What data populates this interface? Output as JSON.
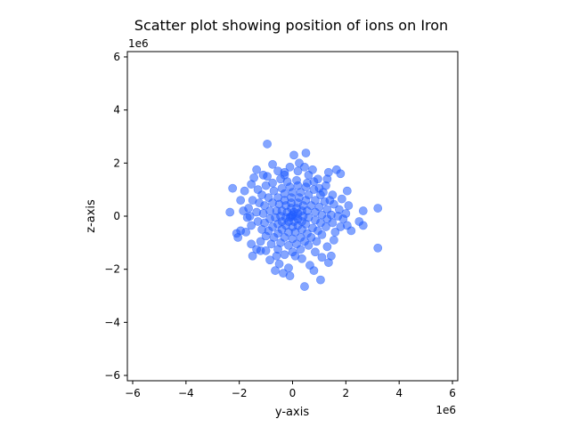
{
  "chart_data": {
    "type": "scatter",
    "title": "Scatter plot showing position of ions on Iron",
    "xlabel": "y-axis",
    "ylabel": "z-axis",
    "x_offset_label": "1e6",
    "y_offset_label": "1e6",
    "xlim": [
      -6.2,
      6.2
    ],
    "ylim": [
      -6.2,
      6.2
    ],
    "xticks": [
      -6,
      -4,
      -2,
      0,
      2,
      4,
      6
    ],
    "yticks": [
      -6,
      -4,
      -2,
      0,
      2,
      4,
      6
    ],
    "xtick_labels": [
      "−6",
      "−4",
      "−2",
      "0",
      "2",
      "4",
      "6"
    ],
    "ytick_labels": [
      "−6",
      "−4",
      "−2",
      "0",
      "2",
      "4",
      "6"
    ],
    "grid": false,
    "marker_color": "#1f5bff",
    "marker_alpha": 0.55,
    "series": [
      {
        "points": [
          [
            -0.95,
            2.72
          ],
          [
            0.05,
            2.3
          ],
          [
            0.5,
            2.38
          ],
          [
            0.25,
            2.0
          ],
          [
            0.45,
            1.85
          ],
          [
            1.65,
            1.75
          ],
          [
            1.8,
            1.6
          ],
          [
            1.35,
            1.65
          ],
          [
            1.3,
            1.4
          ],
          [
            -0.75,
            1.95
          ],
          [
            -0.55,
            1.7
          ],
          [
            -0.3,
            1.65
          ],
          [
            -1.35,
            1.75
          ],
          [
            -1.1,
            1.55
          ],
          [
            -1.45,
            1.45
          ],
          [
            -1.55,
            1.2
          ],
          [
            -1.3,
            1.0
          ],
          [
            -1.8,
            0.95
          ],
          [
            -2.25,
            1.05
          ],
          [
            -1.95,
            0.6
          ],
          [
            -2.35,
            0.15
          ],
          [
            -1.65,
            0.3
          ],
          [
            -1.7,
            -0.05
          ],
          [
            -2.1,
            -0.65
          ],
          [
            -1.95,
            -0.55
          ],
          [
            -2.05,
            -0.8
          ],
          [
            -1.75,
            -0.6
          ],
          [
            -1.55,
            -1.05
          ],
          [
            -1.5,
            -1.5
          ],
          [
            -1.2,
            -0.95
          ],
          [
            -1.35,
            -1.25
          ],
          [
            -0.85,
            -1.65
          ],
          [
            -0.65,
            -2.05
          ],
          [
            -0.35,
            -2.15
          ],
          [
            -0.1,
            -2.25
          ],
          [
            -0.15,
            -1.95
          ],
          [
            0.1,
            -1.5
          ],
          [
            0.45,
            -2.65
          ],
          [
            0.65,
            -1.85
          ],
          [
            0.8,
            -2.05
          ],
          [
            1.05,
            -2.4
          ],
          [
            1.1,
            -1.55
          ],
          [
            1.35,
            -1.75
          ],
          [
            1.45,
            -1.5
          ],
          [
            1.3,
            -1.15
          ],
          [
            1.55,
            -0.9
          ],
          [
            1.8,
            -0.4
          ],
          [
            2.05,
            -0.35
          ],
          [
            2.2,
            -0.55
          ],
          [
            2.5,
            -0.2
          ],
          [
            2.65,
            -0.35
          ],
          [
            2.65,
            0.2
          ],
          [
            3.2,
            0.3
          ],
          [
            3.2,
            -1.2
          ],
          [
            2.05,
            0.95
          ],
          [
            1.85,
            0.65
          ],
          [
            1.75,
            0.25
          ],
          [
            2.0,
            0.1
          ],
          [
            1.5,
            0.8
          ],
          [
            1.55,
            0.45
          ],
          [
            1.25,
            1.15
          ],
          [
            1.0,
            1.05
          ],
          [
            0.8,
            1.3
          ],
          [
            0.55,
            1.25
          ],
          [
            0.15,
            1.35
          ],
          [
            -0.2,
            1.3
          ],
          [
            -0.45,
            1.4
          ],
          [
            -0.75,
            1.25
          ],
          [
            -1.0,
            1.15
          ],
          [
            -1.15,
            0.8
          ],
          [
            -1.25,
            0.5
          ],
          [
            -1.35,
            0.15
          ],
          [
            -1.3,
            -0.2
          ],
          [
            -1.15,
            -0.5
          ],
          [
            -1.0,
            -0.75
          ],
          [
            -0.8,
            -1.05
          ],
          [
            -0.55,
            -1.25
          ],
          [
            -0.3,
            -1.45
          ],
          [
            0.0,
            -1.35
          ],
          [
            0.3,
            -1.25
          ],
          [
            0.6,
            -1.1
          ],
          [
            0.9,
            -0.95
          ],
          [
            1.1,
            -0.7
          ],
          [
            1.25,
            -0.4
          ],
          [
            1.3,
            -0.1
          ],
          [
            1.3,
            0.25
          ],
          [
            1.2,
            0.55
          ],
          [
            1.05,
            0.8
          ],
          [
            0.8,
            1.0
          ],
          [
            0.5,
            1.1
          ],
          [
            0.2,
            1.15
          ],
          [
            -0.1,
            1.1
          ],
          [
            -0.4,
            1.05
          ],
          [
            -0.7,
            0.95
          ],
          [
            -0.9,
            0.7
          ],
          [
            -1.05,
            0.4
          ],
          [
            -1.1,
            0.1
          ],
          [
            -1.05,
            -0.25
          ],
          [
            -0.9,
            -0.55
          ],
          [
            -0.7,
            -0.8
          ],
          [
            -0.45,
            -1.0
          ],
          [
            -0.15,
            -1.1
          ],
          [
            0.15,
            -1.05
          ],
          [
            0.45,
            -0.95
          ],
          [
            0.7,
            -0.8
          ],
          [
            0.95,
            -0.55
          ],
          [
            1.05,
            -0.25
          ],
          [
            1.1,
            0.05
          ],
          [
            1.0,
            0.35
          ],
          [
            0.85,
            0.6
          ],
          [
            0.6,
            0.8
          ],
          [
            0.3,
            0.9
          ],
          [
            0.0,
            0.9
          ],
          [
            -0.3,
            0.85
          ],
          [
            -0.55,
            0.7
          ],
          [
            -0.75,
            0.5
          ],
          [
            -0.85,
            0.2
          ],
          [
            -0.85,
            -0.1
          ],
          [
            -0.75,
            -0.4
          ],
          [
            -0.55,
            -0.65
          ],
          [
            -0.3,
            -0.8
          ],
          [
            0.0,
            -0.85
          ],
          [
            0.3,
            -0.8
          ],
          [
            0.55,
            -0.65
          ],
          [
            0.75,
            -0.45
          ],
          [
            0.85,
            -0.15
          ],
          [
            0.85,
            0.15
          ],
          [
            0.7,
            0.4
          ],
          [
            0.5,
            0.6
          ],
          [
            0.25,
            0.7
          ],
          [
            -0.05,
            0.7
          ],
          [
            -0.3,
            0.6
          ],
          [
            -0.5,
            0.45
          ],
          [
            -0.6,
            0.2
          ],
          [
            -0.65,
            -0.05
          ],
          [
            -0.55,
            -0.3
          ],
          [
            -0.4,
            -0.5
          ],
          [
            -0.15,
            -0.6
          ],
          [
            0.1,
            -0.6
          ],
          [
            0.35,
            -0.5
          ],
          [
            0.5,
            -0.3
          ],
          [
            0.6,
            -0.05
          ],
          [
            0.55,
            0.2
          ],
          [
            0.4,
            0.4
          ],
          [
            0.2,
            0.5
          ],
          [
            -0.05,
            0.5
          ],
          [
            -0.25,
            0.4
          ],
          [
            -0.4,
            0.2
          ],
          [
            -0.45,
            0.0
          ],
          [
            -0.4,
            -0.2
          ],
          [
            -0.25,
            -0.35
          ],
          [
            0.0,
            -0.4
          ],
          [
            0.2,
            -0.35
          ],
          [
            0.35,
            -0.2
          ],
          [
            0.4,
            0.0
          ],
          [
            0.35,
            0.2
          ],
          [
            0.15,
            0.3
          ],
          [
            -0.05,
            0.3
          ],
          [
            -0.2,
            0.15
          ],
          [
            -0.25,
            -0.05
          ],
          [
            -0.15,
            -0.2
          ],
          [
            0.05,
            -0.2
          ],
          [
            0.2,
            -0.1
          ],
          [
            0.2,
            0.1
          ],
          [
            0.05,
            0.15
          ],
          [
            -0.05,
            0.0
          ],
          [
            0.0,
            0.05
          ],
          [
            0.1,
            0.0
          ],
          [
            -0.1,
            -0.05
          ],
          [
            1.45,
            0.05
          ],
          [
            1.5,
            -0.25
          ],
          [
            1.4,
            0.6
          ],
          [
            -1.5,
            0.6
          ],
          [
            -1.55,
            -0.35
          ],
          [
            -0.6,
            -1.5
          ],
          [
            0.35,
            -1.6
          ],
          [
            0.6,
            1.55
          ],
          [
            -0.3,
            1.55
          ],
          [
            1.6,
            -0.6
          ],
          [
            0.95,
            1.4
          ],
          [
            -1.2,
            -1.3
          ],
          [
            1.15,
            0.9
          ],
          [
            -0.95,
            1.5
          ],
          [
            0.2,
            1.7
          ],
          [
            -0.1,
            1.85
          ],
          [
            0.85,
            -1.35
          ],
          [
            -1.0,
            -1.3
          ],
          [
            1.7,
            0.0
          ],
          [
            -1.6,
            0.0
          ],
          [
            2.1,
            0.4
          ],
          [
            1.9,
            -0.1
          ],
          [
            -1.85,
            0.2
          ],
          [
            -0.5,
            -1.8
          ],
          [
            0.75,
            1.75
          ]
        ]
      }
    ]
  }
}
